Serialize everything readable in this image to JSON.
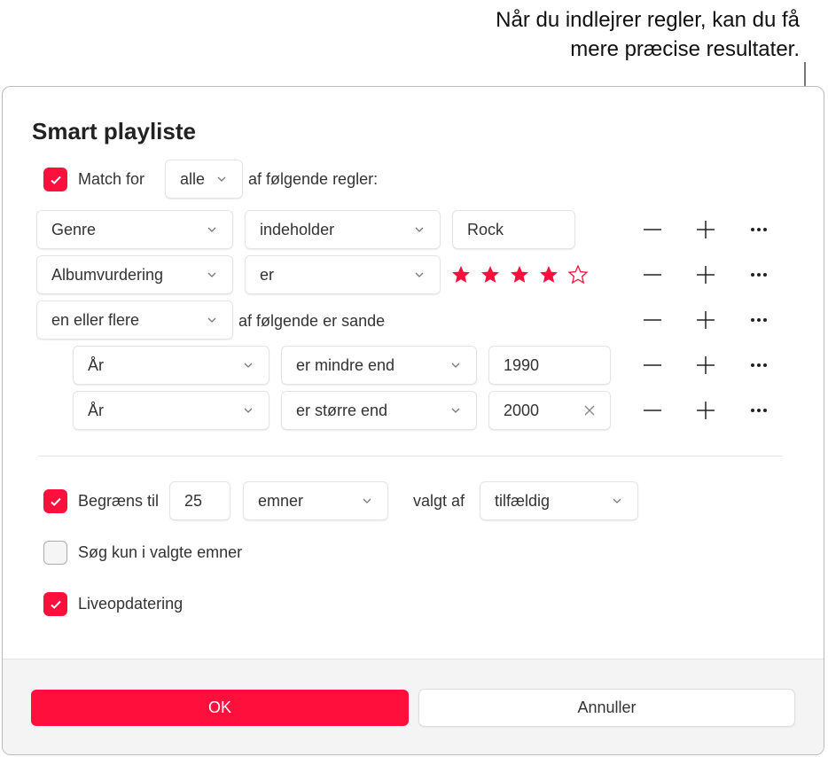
{
  "callout": {
    "line1": "Når du indlejrer regler, kan du få",
    "line2": "mere præcise resultater."
  },
  "dialog": {
    "title": "Smart playliste",
    "match": {
      "checked": true,
      "label": "Match for",
      "value": "alle",
      "suffix": "af følgende regler:"
    },
    "rules": [
      {
        "field": "Genre",
        "op": "indeholder",
        "value": "Rock"
      },
      {
        "field": "Albumvurdering",
        "op": "er",
        "rating": 4,
        "max_rating": 5
      },
      {
        "field": "en eller flere",
        "suffix": "af følgende er sande"
      },
      {
        "field": "År",
        "op": "er mindre end",
        "value": "1990"
      },
      {
        "field": "År",
        "op": "er større end",
        "value": "2000"
      }
    ],
    "limit": {
      "checked": true,
      "label": "Begræns til",
      "value": "25",
      "unit": "emner",
      "by_label": "valgt af",
      "by": "tilfældig"
    },
    "selected_only": {
      "checked": false,
      "label": "Søg kun i valgte emner"
    },
    "live": {
      "checked": true,
      "label": "Liveopdatering"
    },
    "ok": "OK",
    "cancel": "Annuller"
  },
  "colors": {
    "accent": "#ff0f3c"
  }
}
